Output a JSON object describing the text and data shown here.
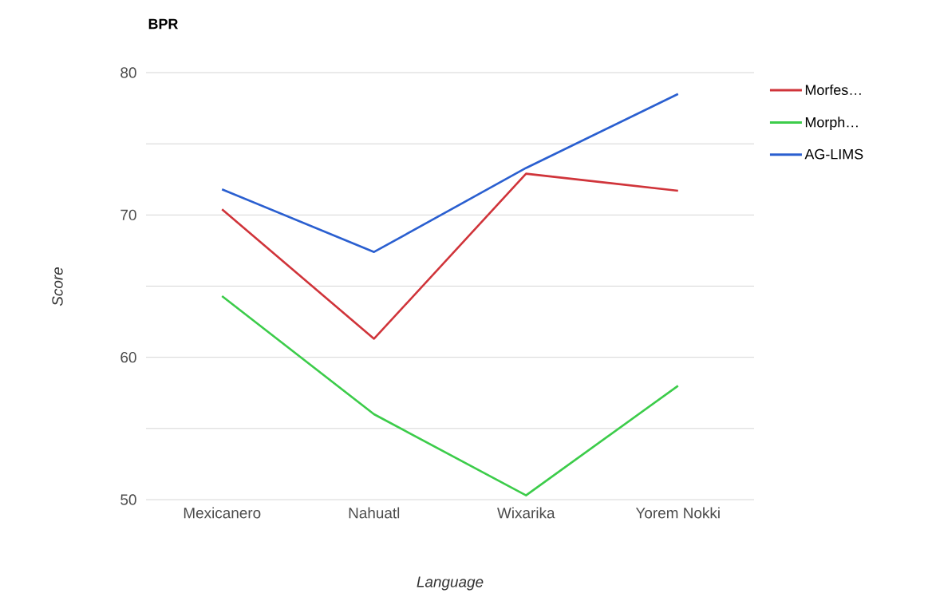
{
  "chart_data": {
    "type": "line",
    "title": "BPR",
    "xlabel": "Language",
    "ylabel": "Score",
    "categories": [
      "Mexicanero",
      "Nahuatl",
      "Wixarika",
      "Yorem Nokki"
    ],
    "series": [
      {
        "name": "Morfes…",
        "color": "#d0343a",
        "values": [
          70.4,
          61.3,
          72.9,
          71.7
        ]
      },
      {
        "name": "Morph…",
        "color": "#3ccc4a",
        "values": [
          64.3,
          56.0,
          50.3,
          58.0
        ]
      },
      {
        "name": "AG-LIMS",
        "color": "#2a5fd0",
        "values": [
          71.8,
          67.4,
          73.3,
          78.5
        ]
      }
    ],
    "ylim": [
      50,
      80
    ],
    "yticks": [
      50,
      {
        "value": 55,
        "label": null
      },
      60,
      {
        "value": 65,
        "label": null
      },
      70,
      {
        "value": 75,
        "label": null
      },
      80
    ],
    "grid": "y",
    "legend": "top right",
    "marker": "none",
    "line_style": "solid"
  }
}
